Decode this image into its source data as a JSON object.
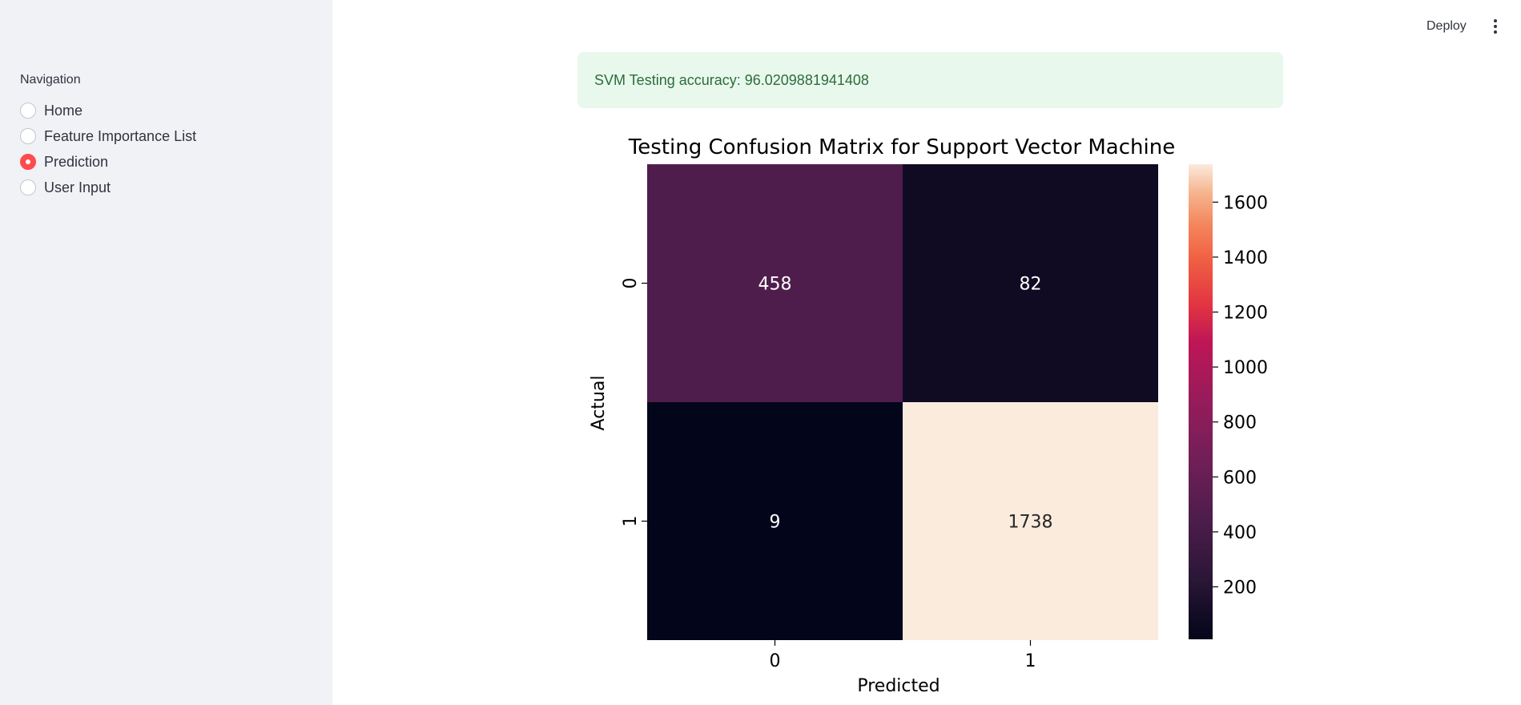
{
  "sidebar": {
    "nav_label": "Navigation",
    "items": [
      {
        "label": "Home",
        "selected": false
      },
      {
        "label": "Feature Importance List",
        "selected": false
      },
      {
        "label": "Prediction",
        "selected": true
      },
      {
        "label": "User Input",
        "selected": false
      }
    ]
  },
  "header": {
    "deploy_label": "Deploy",
    "menu_icon": "kebab-menu-icon"
  },
  "alert": {
    "text": "SVM Testing accuracy: 96.0209881941408"
  },
  "colors": {
    "sidebar_bg": "#f0f2f6",
    "accent": "#ff4b4b",
    "success_bg": "#e8f8ec",
    "success_text": "#2e6c3c"
  },
  "chart_data": {
    "type": "heatmap",
    "title": "Testing Confusion Matrix for Support Vector Machine",
    "xlabel": "Predicted",
    "ylabel": "Actual",
    "x_categories": [
      "0",
      "1"
    ],
    "y_categories": [
      "0",
      "1"
    ],
    "values": [
      [
        458,
        82
      ],
      [
        9,
        1738
      ]
    ],
    "colormap": "rocket",
    "colorbar_range": [
      9,
      1738
    ],
    "colorbar_ticks": [
      200,
      400,
      600,
      800,
      1000,
      1200,
      1400,
      1600
    ]
  }
}
